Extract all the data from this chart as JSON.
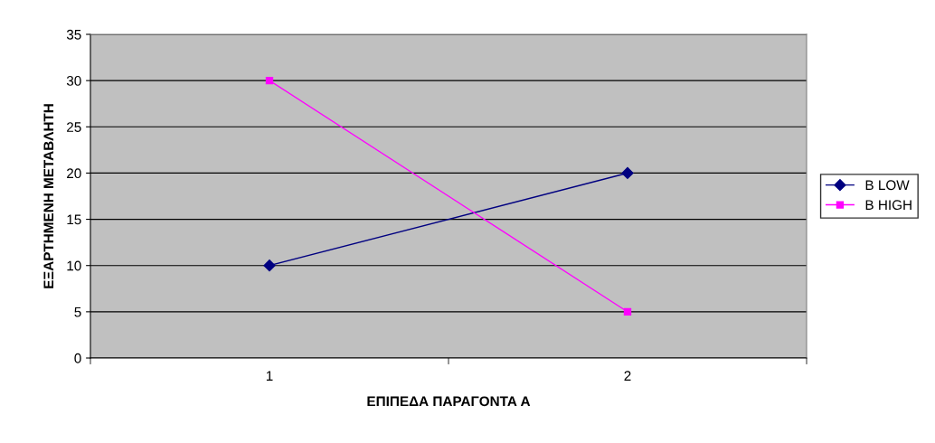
{
  "chart_data": {
    "type": "line",
    "xlabel": "ΕΠΙΠΕΔΑ ΠΑΡΑΓΟΝΤΑ Α",
    "ylabel": "ΕΞΑΡΤΗΜΕΝΗ ΜΕΤΑΒΛΗΤΗ",
    "categories": [
      "1",
      "2"
    ],
    "series": [
      {
        "name": "B LOW",
        "color": "#000080",
        "values": [
          10,
          20
        ],
        "marker": "diamond"
      },
      {
        "name": "B HIGH",
        "color": "#ff00ff",
        "values": [
          30,
          5
        ],
        "marker": "square"
      }
    ],
    "ylim": [
      0,
      35
    ],
    "yticks": [
      0,
      5,
      10,
      15,
      20,
      25,
      30,
      35
    ],
    "grid": "y",
    "legend": "right",
    "line_style": "solid"
  }
}
